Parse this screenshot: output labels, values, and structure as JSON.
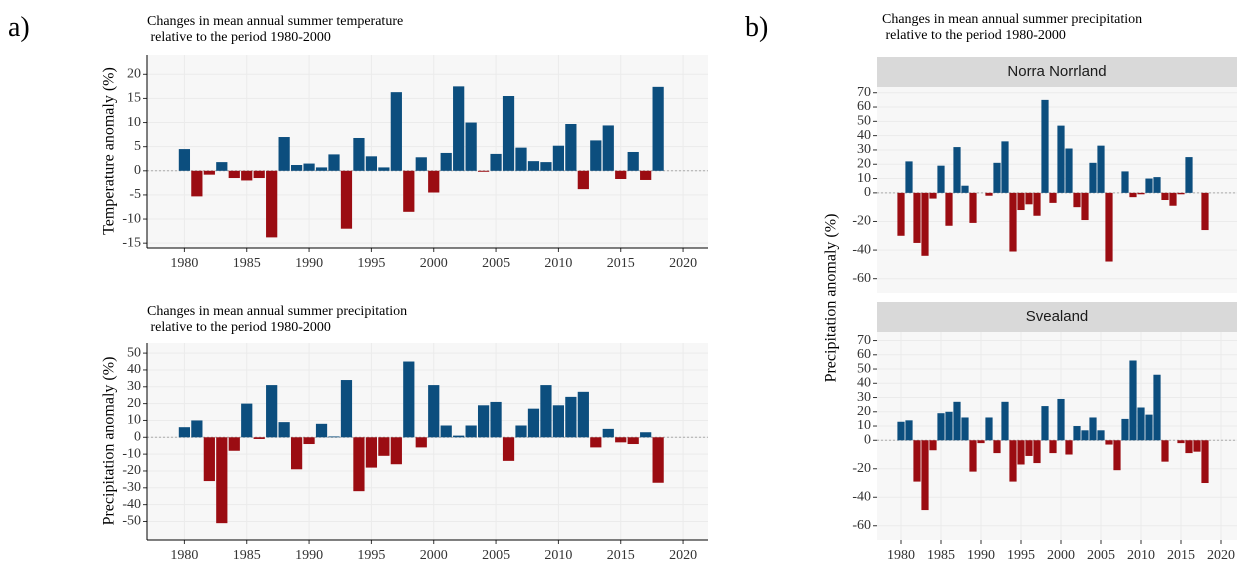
{
  "panel_labels": [
    "a)",
    "b)"
  ],
  "chart_data": [
    {
      "type": "bar",
      "title": "Changes in mean annual summer temperature\n relative to the period 1980-2000",
      "ylabel": "Temperature anomaly (%)",
      "x": [
        1980,
        1981,
        1982,
        1983,
        1984,
        1985,
        1986,
        1987,
        1988,
        1989,
        1990,
        1991,
        1992,
        1993,
        1994,
        1995,
        1996,
        1997,
        1998,
        1999,
        2000,
        2001,
        2002,
        2003,
        2004,
        2005,
        2006,
        2007,
        2008,
        2009,
        2010,
        2011,
        2012,
        2013,
        2014,
        2015,
        2016,
        2017,
        2018
      ],
      "values": [
        4.5,
        -5.3,
        -0.8,
        1.8,
        -1.5,
        -2.0,
        -1.5,
        -13.8,
        7.0,
        1.2,
        1.5,
        0.7,
        3.4,
        -12.0,
        6.8,
        3.0,
        0.7,
        16.3,
        -8.5,
        2.8,
        -4.5,
        3.7,
        17.5,
        10.0,
        -0.2,
        3.5,
        15.5,
        4.8,
        2.0,
        1.8,
        5.2,
        9.7,
        -3.8,
        6.3,
        9.4,
        -1.7,
        3.9,
        -1.9,
        17.4
      ],
      "positive_color": "#0c4e7e",
      "negative_color": "#9b0c12",
      "xlim": [
        1977,
        2022
      ],
      "xticks": [
        1980,
        1985,
        1990,
        1995,
        2000,
        2005,
        2010,
        2015,
        2020
      ],
      "ylim": [
        -16,
        24
      ],
      "yticks": [
        -15,
        -10,
        -5,
        0,
        5,
        10,
        15,
        20
      ],
      "grid": true
    },
    {
      "type": "bar",
      "title": "Changes in mean annual summer precipitation\n relative to the period 1980-2000",
      "ylabel": "Precipitation anomaly (%)",
      "x": [
        1980,
        1981,
        1982,
        1983,
        1984,
        1985,
        1986,
        1987,
        1988,
        1989,
        1990,
        1991,
        1992,
        1993,
        1994,
        1995,
        1996,
        1997,
        1998,
        1999,
        2000,
        2001,
        2002,
        2003,
        2004,
        2005,
        2006,
        2007,
        2008,
        2009,
        2010,
        2011,
        2012,
        2013,
        2014,
        2015,
        2016,
        2017,
        2018
      ],
      "values": [
        6,
        10,
        -26,
        -51,
        -8,
        20,
        -1,
        31,
        9,
        -19,
        -4,
        8,
        0.5,
        34,
        -32,
        -18,
        -11,
        -16,
        45,
        -6,
        31,
        7,
        1,
        7,
        19,
        21,
        -14,
        7,
        17,
        31,
        19,
        24,
        27,
        -6,
        5,
        -3,
        -4,
        3,
        -27
      ],
      "positive_color": "#0c4e7e",
      "negative_color": "#9b0c12",
      "xlim": [
        1977,
        2022
      ],
      "xticks": [
        1980,
        1985,
        1990,
        1995,
        2000,
        2005,
        2010,
        2015,
        2020
      ],
      "ylim": [
        -61,
        56
      ],
      "yticks": [
        -50,
        -40,
        -30,
        -20,
        -10,
        0,
        10,
        20,
        30,
        40,
        50
      ],
      "grid": true
    },
    {
      "type": "bar",
      "title": "Changes in mean annual summer precipitation\n relative to the period 1980-2000",
      "ylabel": "Precipitation anomaly (%)",
      "facet": "Norra Norrland",
      "x": [
        1980,
        1981,
        1982,
        1983,
        1984,
        1985,
        1986,
        1987,
        1988,
        1989,
        1990,
        1991,
        1992,
        1993,
        1994,
        1995,
        1996,
        1997,
        1998,
        1999,
        2000,
        2001,
        2002,
        2003,
        2004,
        2005,
        2006,
        2007,
        2008,
        2009,
        2010,
        2011,
        2012,
        2013,
        2014,
        2015,
        2016,
        2017,
        2018
      ],
      "values": [
        -30,
        22,
        -35,
        -44,
        -4,
        19,
        -23,
        32,
        5,
        -21,
        0,
        -2,
        21,
        36,
        -41,
        -12,
        -8,
        -16,
        65,
        -7,
        47,
        31,
        -10,
        -19,
        21,
        33,
        -48,
        0,
        15,
        -3,
        -1,
        10,
        11,
        -5,
        -9,
        -1,
        25,
        0,
        -26
      ],
      "positive_color": "#0c4e7e",
      "negative_color": "#9b0c12",
      "xlim": [
        1977,
        2022
      ],
      "ylim": [
        -70,
        74
      ],
      "yticks": [
        -60,
        -40,
        -20,
        0,
        10,
        20,
        30,
        40,
        50,
        60,
        70
      ],
      "grid": true
    },
    {
      "type": "bar",
      "facet": "Svealand",
      "x": [
        1980,
        1981,
        1982,
        1983,
        1984,
        1985,
        1986,
        1987,
        1988,
        1989,
        1990,
        1991,
        1992,
        1993,
        1994,
        1995,
        1996,
        1997,
        1998,
        1999,
        2000,
        2001,
        2002,
        2003,
        2004,
        2005,
        2006,
        2007,
        2008,
        2009,
        2010,
        2011,
        2012,
        2013,
        2014,
        2015,
        2016,
        2017,
        2018
      ],
      "values": [
        13,
        14,
        -29,
        -49,
        -7,
        19,
        20,
        27,
        16,
        -22,
        -2,
        16,
        -9,
        27,
        -29,
        -17,
        -11,
        -16,
        24,
        -9,
        29,
        -10,
        10,
        7,
        16,
        7,
        -3,
        -21,
        15,
        56,
        23,
        18,
        46,
        -15,
        0,
        -2,
        -9,
        -8,
        -30
      ],
      "positive_color": "#0c4e7e",
      "negative_color": "#9b0c12",
      "xlim": [
        1977,
        2022
      ],
      "xticks": [
        1980,
        1985,
        1990,
        1995,
        2000,
        2005,
        2010,
        2015,
        2020
      ],
      "ylim": [
        -70,
        76
      ],
      "yticks": [
        -60,
        -40,
        -20,
        0,
        10,
        20,
        30,
        40,
        50,
        60,
        70
      ],
      "grid": true
    }
  ]
}
